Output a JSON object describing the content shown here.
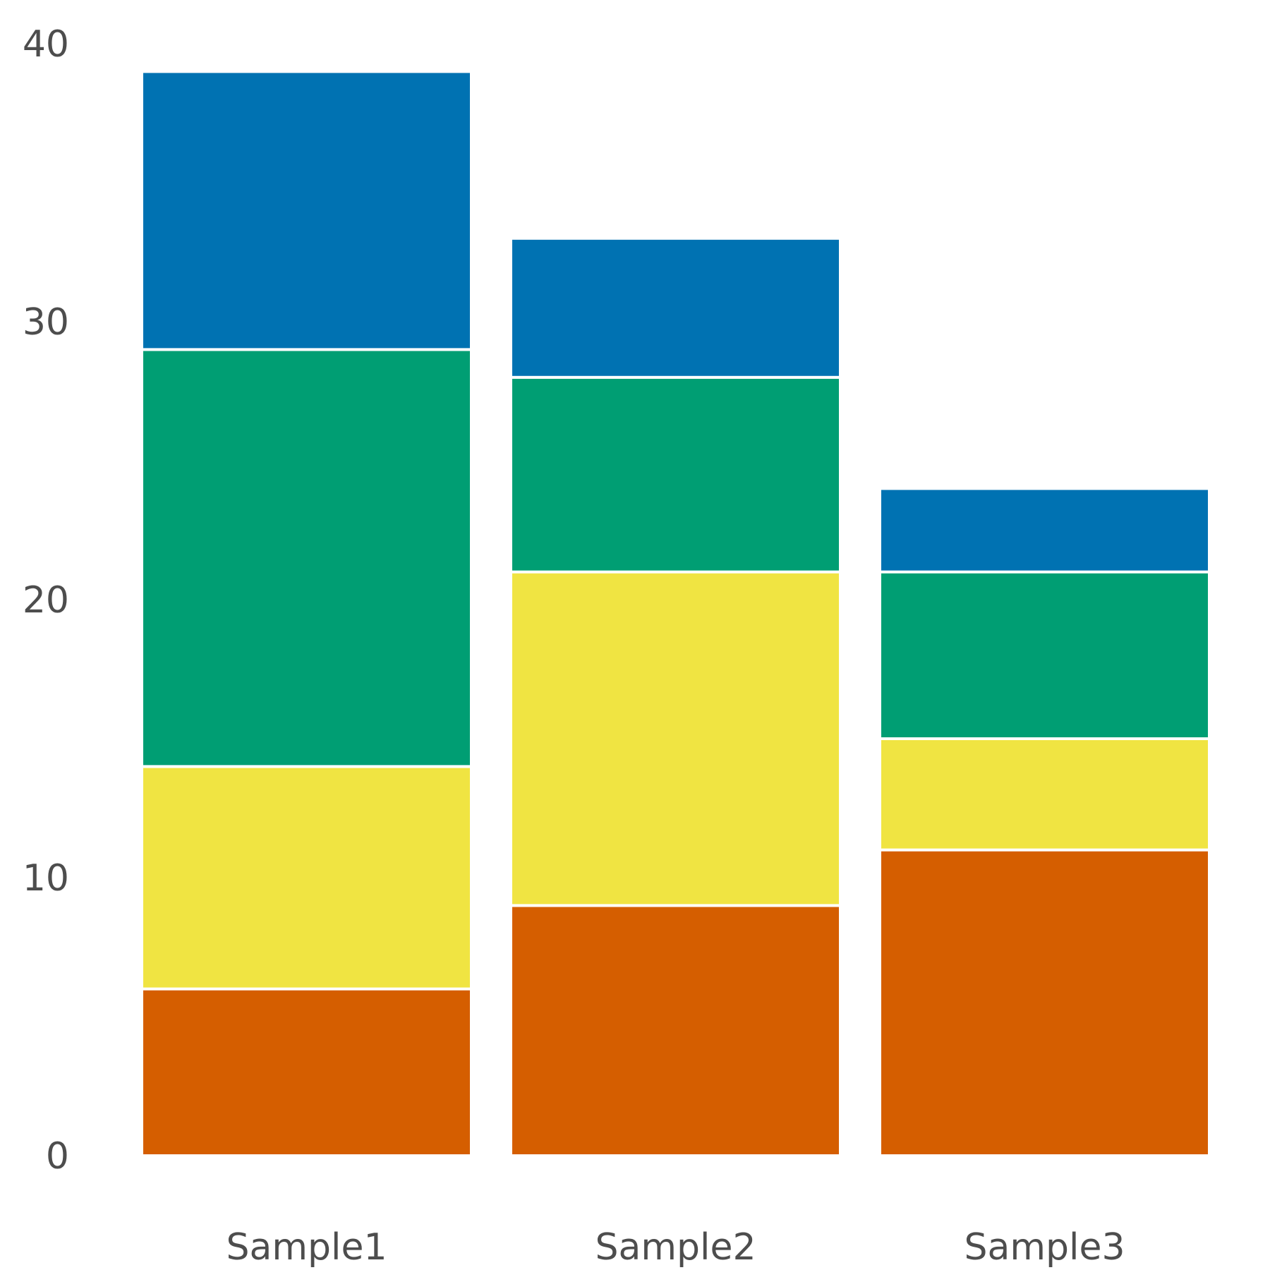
{
  "chart_data": {
    "type": "bar",
    "stacked": true,
    "categories": [
      "Sample1",
      "Sample2",
      "Sample3"
    ],
    "series": [
      {
        "values": [
          6,
          9,
          11
        ],
        "color": "#D55E00"
      },
      {
        "values": [
          8,
          12,
          4
        ],
        "color": "#F0E442"
      },
      {
        "values": [
          15,
          7,
          6
        ],
        "color": "#009E73"
      },
      {
        "values": [
          10,
          5,
          3
        ],
        "color": "#0072B2"
      }
    ],
    "y_ticks": [
      0,
      10,
      20,
      30,
      40
    ],
    "ylim": [
      0,
      40
    ],
    "grid": false,
    "legend": "none"
  }
}
